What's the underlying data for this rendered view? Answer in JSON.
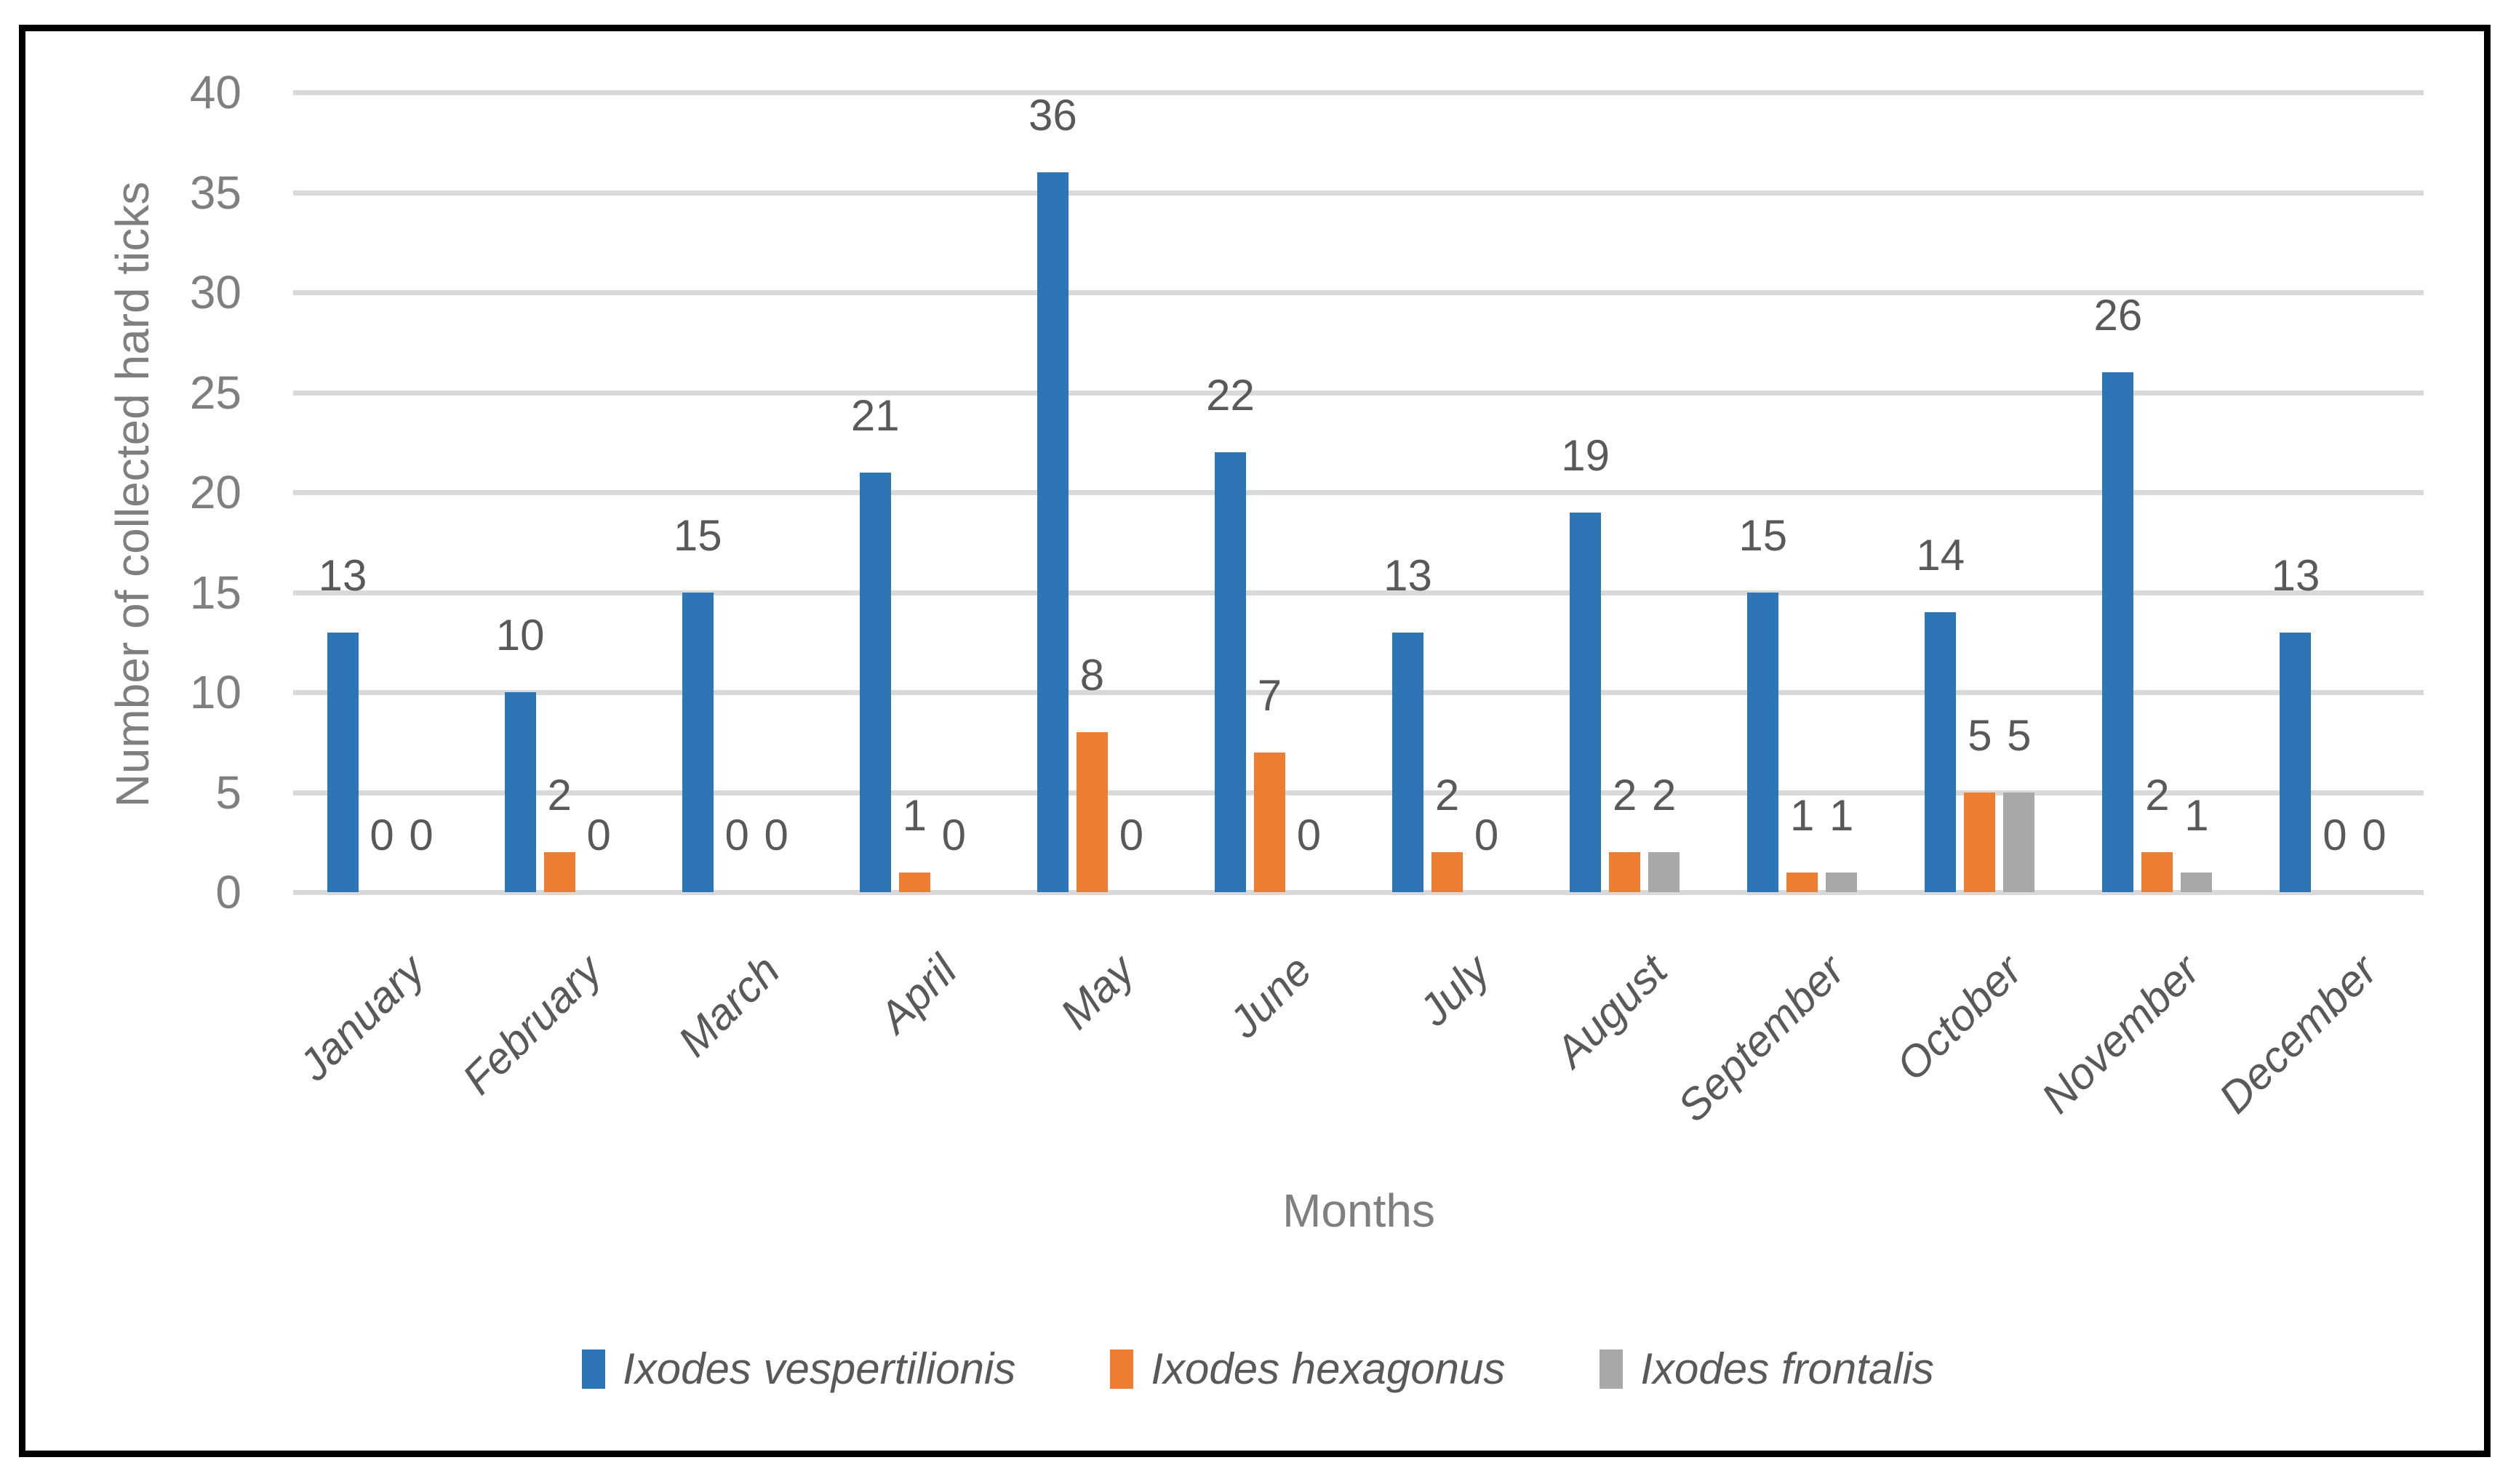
{
  "chart_data": {
    "type": "bar",
    "title": "",
    "categories": [
      "January",
      "February",
      "March",
      "April",
      "May",
      "June",
      "July",
      "August",
      "September",
      "October",
      "November",
      "December"
    ],
    "series": [
      {
        "name": "Ixodes vespertilionis",
        "color": "#2E75B6",
        "values": [
          13,
          10,
          15,
          21,
          36,
          22,
          13,
          19,
          15,
          14,
          26,
          13
        ]
      },
      {
        "name": "Ixodes hexagonus",
        "color": "#ED7D31",
        "values": [
          0,
          2,
          0,
          1,
          8,
          7,
          2,
          2,
          1,
          5,
          2,
          0
        ]
      },
      {
        "name": "Ixodes frontalis",
        "color": "#A8A8A8",
        "values": [
          0,
          0,
          0,
          0,
          0,
          0,
          0,
          2,
          1,
          5,
          1,
          0
        ]
      }
    ],
    "xlabel": "Months",
    "ylabel": "Number of collected hard ticks",
    "ylim": [
      0,
      40
    ],
    "ytick_step": 5,
    "grid": true,
    "data_labels": true,
    "legend_position": "bottom",
    "colors": {
      "gridline": "#D9D9D9",
      "tick_text": "#7F7F7F",
      "axis_title_text": "#7F7F7F",
      "data_label_text": "#595959",
      "category_text": "#595959",
      "legend_text": "#595959",
      "frame_border": "#000000",
      "background": "#FFFFFF"
    }
  }
}
